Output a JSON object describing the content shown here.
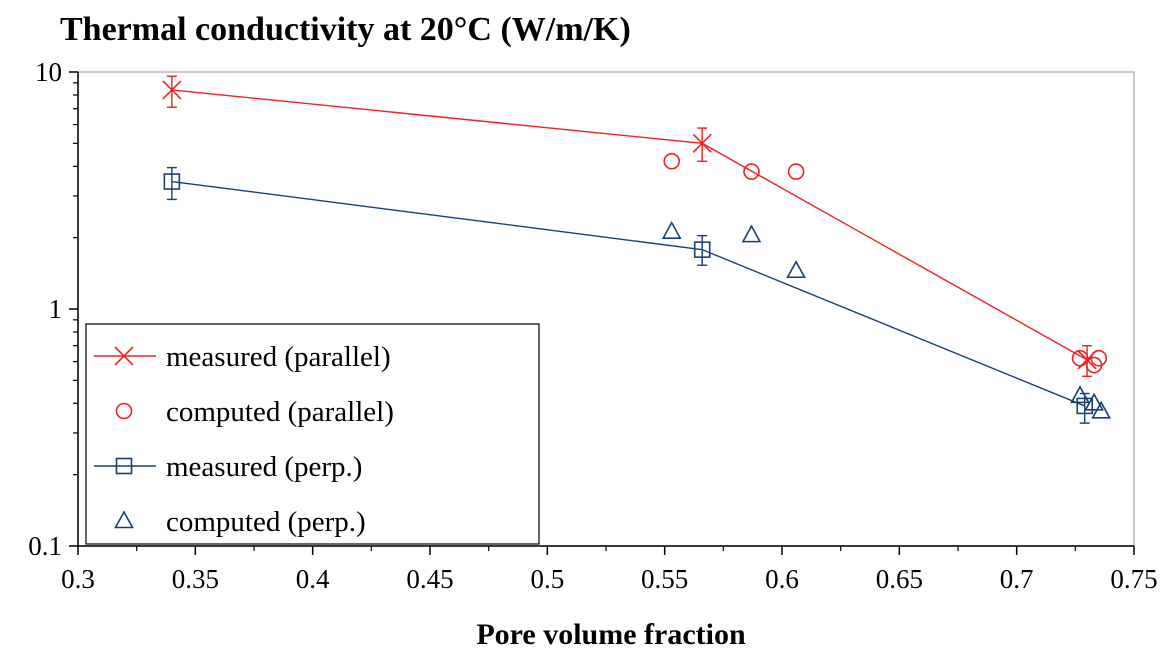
{
  "chart_data": {
    "type": "scatter",
    "title": "Thermal conductivity at 20°C (W/m/K)",
    "xlabel": "Pore volume fraction",
    "ylabel": "",
    "xlim": [
      0.3,
      0.75
    ],
    "ylim": [
      0.1,
      10
    ],
    "yscale": "log",
    "grid": false,
    "legend_position": "bottom-left",
    "x_ticks": [
      "0.3",
      "0.35",
      "0.4",
      "0.45",
      "0.5",
      "0.55",
      "0.6",
      "0.65",
      "0.7",
      "0.75"
    ],
    "y_ticks": [
      "0.1",
      "1",
      "10"
    ],
    "series": [
      {
        "name": "measured (parallel)",
        "marker": "x",
        "line": true,
        "color": "#ee2222",
        "x": [
          0.34,
          0.566,
          0.73
        ],
        "y": [
          8.4,
          5.0,
          0.61
        ],
        "err_low": [
          7.1,
          4.2,
          0.52
        ],
        "err_high": [
          9.6,
          5.8,
          0.7
        ]
      },
      {
        "name": "computed (parallel)",
        "marker": "circle",
        "line": false,
        "color": "#ee2222",
        "x": [
          0.553,
          0.587,
          0.606,
          0.727,
          0.733,
          0.735
        ],
        "y": [
          4.2,
          3.8,
          3.8,
          0.62,
          0.58,
          0.62
        ]
      },
      {
        "name": "measured (perp.)",
        "marker": "square",
        "line": true,
        "color": "#1a3f73",
        "x": [
          0.34,
          0.566,
          0.729
        ],
        "y": [
          3.45,
          1.78,
          0.39
        ],
        "err_low": [
          2.9,
          1.53,
          0.33
        ],
        "err_high": [
          3.95,
          2.04,
          0.44
        ]
      },
      {
        "name": "computed (perp.)",
        "marker": "triangle",
        "line": false,
        "color": "#1a3f73",
        "x": [
          0.553,
          0.587,
          0.606,
          0.727,
          0.733,
          0.736
        ],
        "y": [
          2.12,
          2.05,
          1.45,
          0.43,
          0.4,
          0.37
        ]
      }
    ]
  }
}
